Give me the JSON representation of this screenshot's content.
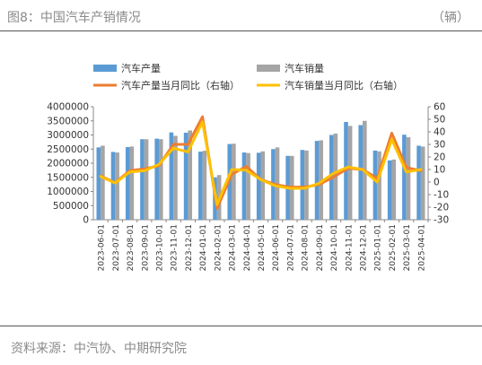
{
  "header": {
    "title": "图8：中国汽车产销情况",
    "unit": "（辆）"
  },
  "footer": {
    "source": "资料来源：中汽协、中期研究院"
  },
  "chart_data": {
    "type": "bar",
    "categories": [
      "2023-06-01",
      "2023-07-01",
      "2023-08-01",
      "2023-09-01",
      "2023-10-01",
      "2023-11-01",
      "2023-12-01",
      "2024-01-01",
      "2024-02-01",
      "2024-03-01",
      "2024-04-01",
      "2024-05-01",
      "2024-06-01",
      "2024-07-01",
      "2024-08-01",
      "2024-09-01",
      "2024-10-01",
      "2024-11-01",
      "2024-12-01",
      "2025-01-01",
      "2025-02-01",
      "2025-03-01",
      "2025-04-01"
    ],
    "series": [
      {
        "name": "汽车产量",
        "kind": "bar",
        "axis": "left",
        "color": "#5b9bd5",
        "values": [
          2560000,
          2400000,
          2570000,
          2850000,
          2870000,
          3090000,
          3080000,
          2410000,
          1500000,
          2680000,
          2380000,
          2370000,
          2500000,
          2260000,
          2470000,
          2790000,
          3000000,
          3460000,
          3350000,
          2450000,
          2100000,
          3010000,
          2620000
        ]
      },
      {
        "name": "汽车销量",
        "kind": "bar",
        "axis": "left",
        "color": "#a5a5a5",
        "values": [
          2620000,
          2380000,
          2590000,
          2850000,
          2850000,
          2970000,
          3160000,
          2440000,
          1580000,
          2690000,
          2360000,
          2420000,
          2560000,
          2260000,
          2450000,
          2810000,
          3050000,
          3320000,
          3500000,
          2420000,
          2130000,
          2920000,
          2590000
        ]
      },
      {
        "name": "汽车产量当月同比（右轴）",
        "kind": "line",
        "axis": "right",
        "color": "#ed7d31",
        "values": [
          4.8,
          -0.5,
          9,
          10.5,
          13,
          30,
          30,
          52,
          -21,
          6,
          12.5,
          2,
          -2,
          -4,
          -4,
          -2,
          4,
          11,
          10,
          3,
          39,
          11.5,
          9
        ]
      },
      {
        "name": "汽车销量当月同比（右轴）",
        "kind": "line",
        "axis": "right",
        "color": "#ffc000",
        "values": [
          4.5,
          -0.8,
          8,
          9,
          14,
          27,
          24,
          48,
          -18,
          10,
          9.5,
          2,
          -3,
          -5,
          -5,
          -1,
          7,
          12,
          10,
          0,
          34,
          8,
          10
        ]
      }
    ],
    "yleft": {
      "min": 0,
      "max": 4000000,
      "ticks": [
        0,
        500000,
        1000000,
        1500000,
        2000000,
        2500000,
        3000000,
        3500000,
        4000000
      ]
    },
    "yright": {
      "min": -30,
      "max": 60,
      "ticks": [
        -30,
        -20,
        -10,
        0,
        10,
        20,
        30,
        40,
        50,
        60
      ]
    },
    "legend": "top",
    "grid": false
  }
}
